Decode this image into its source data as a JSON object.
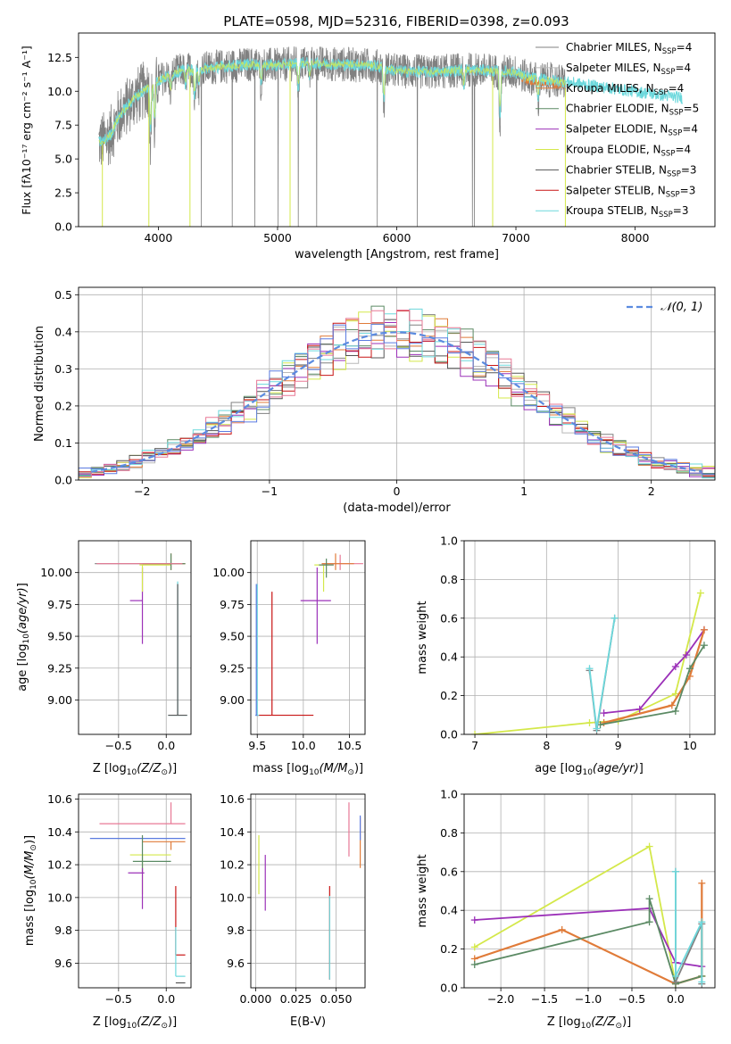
{
  "title": "PLATE=0598, MJD=52316, FIBERID=0398, z=0.093",
  "colors": {
    "chabrier_miles": "#808080",
    "salpeter_miles": "#b8b8b8",
    "kroupa_miles": "#e07b39",
    "chabrier_elodie": "#5b8a64",
    "salpeter_elodie": "#9b30b8",
    "kroupa_elodie": "#d4e84a",
    "chabrier_stelib": "#555555",
    "salpeter_stelib": "#c81414",
    "kroupa_stelib": "#6cd8dc",
    "gaussian": "#5b8be0",
    "extra_pink": "#e87896",
    "extra_blue": "#5b7be0",
    "grid": "#b0b0b0"
  },
  "chart_data": [
    {
      "id": "spectrum",
      "type": "line",
      "xlabel": "wavelength [Angstrom, rest frame]",
      "ylabel": "Flux [f_λ 10^-17 erg cm^-2 s^-1 A^-1]",
      "xlim": [
        3330,
        8670
      ],
      "ylim": [
        0,
        14.3
      ],
      "xticks": [
        4000,
        5000,
        6000,
        7000,
        8000
      ],
      "yticks": [
        0.0,
        2.5,
        5.0,
        7.5,
        10.0,
        12.5
      ],
      "grid": false,
      "legend_position": "right",
      "legend": [
        {
          "label": "Chabrier MILES, N_SSP=4",
          "color_key": "chabrier_miles"
        },
        {
          "label": "Salpeter MILES, N_SSP=4",
          "color_key": "salpeter_miles"
        },
        {
          "label": "Kroupa MILES, N_SSP=4",
          "color_key": "kroupa_miles"
        },
        {
          "label": "Chabrier ELODIE, N_SSP=5",
          "color_key": "chabrier_elodie"
        },
        {
          "label": "Salpeter ELODIE, N_SSP=4",
          "color_key": "salpeter_elodie"
        },
        {
          "label": "Kroupa ELODIE, N_SSP=4",
          "color_key": "kroupa_elodie"
        },
        {
          "label": "Chabrier STELIB, N_SSP=3",
          "color_key": "chabrier_stelib"
        },
        {
          "label": "Salpeter STELIB, N_SSP=3",
          "color_key": "salpeter_stelib"
        },
        {
          "label": "Kroupa STELIB, N_SSP=3",
          "color_key": "kroupa_stelib"
        }
      ],
      "continuum": {
        "x": [
          3500,
          3550,
          3600,
          3650,
          3700,
          3800,
          3900,
          4000,
          4100,
          4200,
          4300,
          4500,
          4800,
          5000,
          5200,
          5500,
          5800,
          6000,
          6300,
          6600,
          7000,
          7100,
          7200,
          7400
        ],
        "y": [
          6.2,
          6.4,
          6.8,
          7.8,
          8.5,
          9.5,
          10.2,
          10.8,
          11.2,
          11.6,
          11.6,
          11.8,
          12.0,
          11.9,
          12.1,
          12.0,
          11.9,
          11.5,
          11.4,
          11.6,
          11.4,
          11.0,
          10.9,
          10.7
        ]
      },
      "model_x_range": [
        3500,
        8400
      ],
      "data_x_range": [
        3500,
        7420
      ]
    },
    {
      "id": "residuals",
      "type": "line",
      "xlabel": "(data-model)/error",
      "ylabel": "Normed distribution",
      "xlim": [
        -2.5,
        2.5
      ],
      "ylim": [
        0,
        0.52
      ],
      "xticks": [
        -2,
        -1,
        0,
        1,
        2
      ],
      "yticks": [
        0.0,
        0.1,
        0.2,
        0.3,
        0.4,
        0.5
      ],
      "grid": true,
      "legend_position": "top-right",
      "legend": [
        {
          "label": "𝒩(0, 1)",
          "color_key": "gaussian"
        }
      ],
      "bin_width": 0.1
    },
    {
      "id": "age_vs_Z",
      "type": "scatter",
      "xlabel": "Z [log10(Z/Z☉)]",
      "ylabel": "age  [log10(age/yr)]",
      "xlim": [
        -0.92,
        0.26
      ],
      "ylim": [
        8.73,
        10.25
      ],
      "xticks": [
        -0.5,
        0.0
      ],
      "yticks": [
        9.0,
        9.25,
        9.5,
        9.75,
        10.0
      ],
      "grid": true,
      "points": [
        {
          "x": 0.1,
          "y": 10.07,
          "xerr": [
            0.85,
            0.1
          ],
          "yerr": [
            0,
            0
          ],
          "color_key": "chabrier_miles"
        },
        {
          "x": 0.05,
          "y": 10.07,
          "xerr": [
            0.3,
            0.15
          ],
          "yerr": [
            0.05,
            0.08
          ],
          "color_key": "kroupa_miles"
        },
        {
          "x": -0.25,
          "y": 9.78,
          "xerr": [
            0.13,
            0
          ],
          "yerr": [
            0.34,
            0.26
          ],
          "color_key": "salpeter_elodie"
        },
        {
          "x": -0.25,
          "y": 10.06,
          "xerr": [
            0.03,
            0.3
          ],
          "yerr": [
            0.21,
            0
          ],
          "color_key": "kroupa_elodie"
        },
        {
          "x": 0.05,
          "y": 10.07,
          "xerr": [
            0.3,
            0.15
          ],
          "yerr": [
            0.05,
            0.08
          ],
          "color_key": "chabrier_elodie"
        },
        {
          "x": 0.12,
          "y": 8.88,
          "xerr": [
            0.1,
            0.1
          ],
          "yerr": [
            0,
            1.05
          ],
          "color_key": "kroupa_stelib"
        },
        {
          "x": 0.12,
          "y": 8.88,
          "xerr": [
            0.1,
            0.1
          ],
          "yerr": [
            0,
            1.03
          ],
          "color_key": "chabrier_stelib"
        },
        {
          "x": 0.07,
          "y": 10.07,
          "xerr": [
            0.8,
            0.1
          ],
          "yerr": [
            0,
            0
          ],
          "color_key": "extra_pink"
        }
      ]
    },
    {
      "id": "age_vs_mass",
      "type": "scatter",
      "xlabel": "mass [log10(M/M☉)]",
      "ylabel": "",
      "xlim": [
        9.43,
        10.67
      ],
      "ylim": [
        8.73,
        10.25
      ],
      "xticks": [
        9.5,
        10.0,
        10.5
      ],
      "yticks": [
        9.0,
        9.25,
        9.5,
        9.75,
        10.0
      ],
      "grid": true,
      "points": [
        {
          "x": 10.4,
          "y": 10.07,
          "xerr": [
            0.2,
            0.25
          ],
          "yerr": [
            0.05,
            0.07
          ],
          "color_key": "extra_pink"
        },
        {
          "x": 10.35,
          "y": 10.07,
          "xerr": [
            0.15,
            0.2
          ],
          "yerr": [
            0.05,
            0.08
          ],
          "color_key": "kroupa_miles"
        },
        {
          "x": 10.15,
          "y": 9.78,
          "xerr": [
            0.18,
            0.15
          ],
          "yerr": [
            0.34,
            0.26
          ],
          "color_key": "salpeter_elodie"
        },
        {
          "x": 10.22,
          "y": 10.06,
          "xerr": [
            0.1,
            0.05
          ],
          "yerr": [
            0.21,
            0.0
          ],
          "color_key": "kroupa_elodie"
        },
        {
          "x": 10.25,
          "y": 10.06,
          "xerr": [
            0.08,
            0.08
          ],
          "yerr": [
            0.1,
            0.05
          ],
          "color_key": "chabrier_elodie"
        },
        {
          "x": 9.66,
          "y": 8.88,
          "xerr": [
            0.16,
            0.45
          ],
          "yerr": [
            0,
            0.97
          ],
          "color_key": "salpeter_stelib"
        },
        {
          "x": 9.5,
          "y": 8.88,
          "xerr": [
            0.02,
            0.02
          ],
          "yerr": [
            0,
            1.03
          ],
          "color_key": "kroupa_stelib"
        },
        {
          "x": 9.49,
          "y": 8.88,
          "xerr": [
            0.01,
            0.01
          ],
          "yerr": [
            0,
            1.03
          ],
          "color_key": "extra_blue"
        }
      ]
    },
    {
      "id": "weight_vs_age",
      "type": "line",
      "xlabel": "age  [log10(age/yr)]",
      "ylabel": "mass weight",
      "xlim": [
        6.85,
        10.35
      ],
      "ylim": [
        0,
        1.0
      ],
      "xticks": [
        7,
        8,
        9,
        10
      ],
      "yticks": [
        0.0,
        0.2,
        0.4,
        0.6,
        0.8,
        1.0
      ],
      "grid": true,
      "series": [
        {
          "color_key": "kroupa_elodie",
          "x": [
            7.0,
            8.6,
            9.0,
            9.8,
            10.15
          ],
          "y": [
            0.0,
            0.06,
            0.07,
            0.21,
            0.73
          ]
        },
        {
          "color_key": "salpeter_elodie",
          "x": [
            8.8,
            9.3,
            9.8,
            9.95,
            10.2
          ],
          "y": [
            0.11,
            0.13,
            0.35,
            0.41,
            0.54
          ]
        },
        {
          "color_key": "kroupa_miles",
          "x": [
            8.8,
            9.75,
            10.0,
            10.2
          ],
          "y": [
            0.06,
            0.15,
            0.3,
            0.54
          ]
        },
        {
          "color_key": "chabrier_elodie",
          "x": [
            8.75,
            9.8,
            10.0,
            10.2
          ],
          "y": [
            0.05,
            0.12,
            0.34,
            0.46
          ]
        },
        {
          "color_key": "chabrier_miles",
          "x": [
            8.6,
            8.7,
            8.95
          ],
          "y": [
            0.33,
            0.02,
            0.6
          ]
        },
        {
          "color_key": "kroupa_stelib",
          "x": [
            8.6,
            8.7,
            8.95
          ],
          "y": [
            0.34,
            0.03,
            0.6
          ]
        }
      ]
    },
    {
      "id": "mass_vs_Z",
      "type": "scatter",
      "xlabel": "Z [log10(Z/Z☉)]",
      "ylabel": "mass [log10(M/M☉)]",
      "xlim": [
        -0.92,
        0.26
      ],
      "ylim": [
        9.45,
        10.63
      ],
      "xticks": [
        -0.5,
        0.0
      ],
      "yticks": [
        9.6,
        9.8,
        10.0,
        10.2,
        10.4,
        10.6
      ],
      "grid": true,
      "points": [
        {
          "x": 0.05,
          "y": 10.45,
          "xerr": [
            0.75,
            0.15
          ],
          "yerr": [
            0,
            0.13
          ],
          "color_key": "extra_pink"
        },
        {
          "x": 0.05,
          "y": 10.36,
          "xerr": [
            0.85,
            0.15
          ],
          "yerr": [
            0,
            0
          ],
          "color_key": "extra_blue"
        },
        {
          "x": 0.05,
          "y": 10.34,
          "xerr": [
            0.3,
            0.15
          ],
          "yerr": [
            0.05,
            0.0
          ],
          "color_key": "kroupa_miles"
        },
        {
          "x": -0.25,
          "y": 10.26,
          "xerr": [
            0.13,
            0.3
          ],
          "yerr": [
            0.24,
            0.0
          ],
          "color_key": "kroupa_elodie"
        },
        {
          "x": -0.25,
          "y": 10.22,
          "xerr": [
            0.1,
            0.3
          ],
          "yerr": [
            0.06,
            0.16
          ],
          "color_key": "chabrier_elodie"
        },
        {
          "x": -0.25,
          "y": 10.15,
          "xerr": [
            0.15,
            0.02
          ],
          "yerr": [
            0.22,
            0.03
          ],
          "color_key": "salpeter_elodie"
        },
        {
          "x": 0.1,
          "y": 9.65,
          "xerr": [
            0.0,
            0.1
          ],
          "yerr": [
            0,
            0.42
          ],
          "color_key": "salpeter_stelib"
        },
        {
          "x": 0.1,
          "y": 9.52,
          "xerr": [
            0.0,
            0.1
          ],
          "yerr": [
            0,
            0.3
          ],
          "color_key": "kroupa_stelib"
        },
        {
          "x": 0.1,
          "y": 9.48,
          "xerr": [
            0.0,
            0.1
          ],
          "yerr": [
            0,
            0
          ],
          "color_key": "chabrier_stelib"
        }
      ]
    },
    {
      "id": "mass_vs_ebv",
      "type": "scatter",
      "xlabel": "E(B-V)",
      "ylabel": "",
      "xlim": [
        -0.003,
        0.068
      ],
      "ylim": [
        9.45,
        10.63
      ],
      "xticks": [
        0.0,
        0.025,
        0.05
      ],
      "xticklabels": [
        "0.000",
        "0.025",
        "0.050"
      ],
      "yticks": [
        9.6,
        9.8,
        10.0,
        10.2,
        10.4,
        10.6
      ],
      "grid": true,
      "points": [
        {
          "x": 0.002,
          "y": 10.2,
          "yerr": [
            0.18,
            0.18
          ],
          "color_key": "kroupa_elodie"
        },
        {
          "x": 0.006,
          "y": 10.1,
          "yerr": [
            0.18,
            0.16
          ],
          "color_key": "salpeter_elodie"
        },
        {
          "x": 0.046,
          "y": 9.8,
          "yerr": [
            0.3,
            0.27
          ],
          "color_key": "salpeter_stelib"
        },
        {
          "x": 0.046,
          "y": 9.75,
          "yerr": [
            0.25,
            0.26
          ],
          "color_key": "kroupa_stelib"
        },
        {
          "x": 0.058,
          "y": 10.4,
          "yerr": [
            0.15,
            0.18
          ],
          "color_key": "extra_pink"
        },
        {
          "x": 0.065,
          "y": 10.32,
          "yerr": [
            0.14,
            0.17
          ],
          "color_key": "kroupa_miles"
        },
        {
          "x": 0.065,
          "y": 10.35,
          "yerr": [
            0.0,
            0.15
          ],
          "color_key": "extra_blue"
        }
      ]
    },
    {
      "id": "weight_vs_Z",
      "type": "line",
      "xlabel": "Z [log10(Z/Z☉)]",
      "ylabel": "mass weight",
      "xlim": [
        -2.42,
        0.45
      ],
      "ylim": [
        0,
        1.0
      ],
      "xticks": [
        -2.0,
        -1.5,
        -1.0,
        -0.5,
        0.0
      ],
      "yticks": [
        0.0,
        0.2,
        0.4,
        0.6,
        0.8,
        1.0
      ],
      "grid": true,
      "series": [
        {
          "color_key": "kroupa_elodie",
          "x": [
            -2.3,
            -0.3,
            0.0,
            0.3
          ],
          "y": [
            0.21,
            0.73,
            0.02,
            0.06
          ]
        },
        {
          "color_key": "salpeter_elodie",
          "x": [
            -2.3,
            -0.3,
            0.0,
            0.3
          ],
          "y": [
            0.35,
            0.41,
            0.13,
            0.11
          ]
        },
        {
          "color_key": "kroupa_miles",
          "x": [
            -2.3,
            -1.3,
            0.0,
            0.3,
            0.3
          ],
          "y": [
            0.15,
            0.3,
            0.02,
            0.06,
            0.54
          ]
        },
        {
          "color_key": "chabrier_elodie",
          "x": [
            -2.3,
            -0.3,
            -0.3,
            0.0,
            0.3
          ],
          "y": [
            0.12,
            0.34,
            0.46,
            0.02,
            0.06
          ]
        },
        {
          "color_key": "chabrier_miles",
          "x": [
            0.0,
            0.0,
            0.3,
            0.3
          ],
          "y": [
            0.6,
            0.03,
            0.33,
            0.02
          ]
        },
        {
          "color_key": "kroupa_stelib",
          "x": [
            0.0,
            0.0,
            0.3,
            0.3
          ],
          "y": [
            0.6,
            0.06,
            0.34,
            0.03
          ]
        }
      ]
    }
  ]
}
